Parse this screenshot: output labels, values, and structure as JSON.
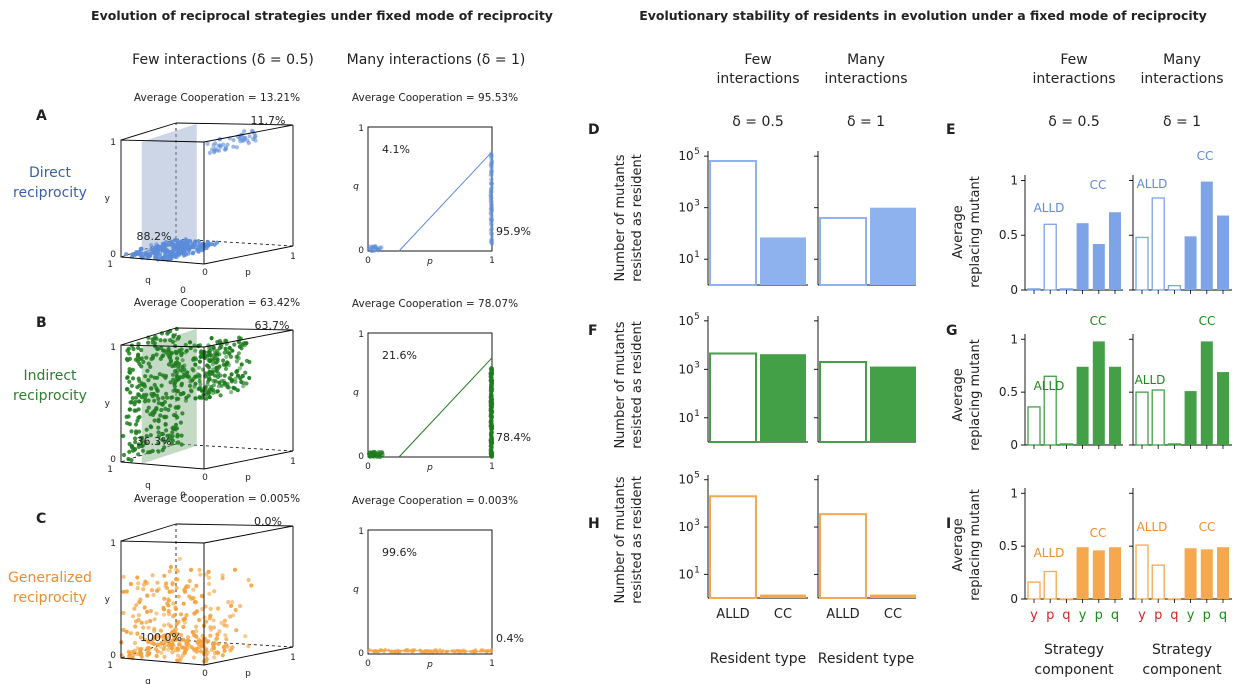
{
  "titles": {
    "left": "Evolution of reciprocal strategies under fixed mode of reciprocity",
    "right": "Evolutionary stability of residents in evolution under a fixed mode of reciprocity"
  },
  "headers": {
    "few_left": "Few interactions (δ = 0.5)",
    "many_left": "Many interactions (δ = 1)",
    "few": "Few",
    "many": "Many",
    "interactions": "interactions",
    "delta_few": "δ = 0.5",
    "delta_many": "δ = 1"
  },
  "rows": [
    {
      "letter": "A",
      "label_line1": "Direct",
      "label_line2": "reciprocity",
      "color": "#5b8bd9"
    },
    {
      "letter": "B",
      "label_line1": "Indirect",
      "label_line2": "reciprocity",
      "color": "#1e7d1e"
    },
    {
      "letter": "C",
      "label_line1": "Generalized",
      "label_line2": "reciprocity",
      "color": "#f4a340"
    }
  ],
  "axis": {
    "p": "p",
    "q": "q",
    "y": "y",
    "zero": "0",
    "one": "1"
  },
  "bar_letters": {
    "D": "D",
    "E": "E",
    "F": "F",
    "G": "G",
    "H": "H",
    "I": "I"
  },
  "ylabels": {
    "mutants_line1": "Number of mutants",
    "mutants_line2": "resisted as resident",
    "replace_line1": "Average",
    "replace_line2": "replacing mutant"
  },
  "xlabels": {
    "resident_type": "Resident type",
    "strategy": "Strategy",
    "component": "component"
  },
  "chart_data": [
    {
      "type": "scatter",
      "panel": "A-3d",
      "title": "Average Cooperation = 13.21%",
      "axes": [
        "p",
        "q",
        "y"
      ],
      "xlim": [
        0,
        1
      ],
      "ylim": [
        0,
        1
      ],
      "zlim": [
        0,
        1
      ],
      "annotations": [
        "11.7%",
        "88.2%"
      ]
    },
    {
      "type": "scatter",
      "panel": "A-2d",
      "title": "Average Cooperation = 95.53%",
      "xlabel": "p",
      "ylabel": "q",
      "xlim": [
        0,
        1
      ],
      "ylim": [
        0,
        1
      ],
      "line": {
        "x": [
          0.25,
          1
        ],
        "y": [
          0,
          0.8
        ]
      },
      "annotations": [
        "4.1%",
        "95.9%"
      ]
    },
    {
      "type": "scatter",
      "panel": "B-3d",
      "title": "Average Cooperation = 63.42%",
      "axes": [
        "p",
        "q",
        "y"
      ],
      "xlim": [
        0,
        1
      ],
      "ylim": [
        0,
        1
      ],
      "zlim": [
        0,
        1
      ],
      "annotations": [
        "63.7%",
        "36.3%"
      ]
    },
    {
      "type": "scatter",
      "panel": "B-2d",
      "title": "Average Cooperation = 78.07%",
      "xlabel": "p",
      "ylabel": "q",
      "xlim": [
        0,
        1
      ],
      "ylim": [
        0,
        1
      ],
      "line": {
        "x": [
          0.25,
          1
        ],
        "y": [
          0,
          0.8
        ]
      },
      "annotations": [
        "21.6%",
        "78.4%"
      ]
    },
    {
      "type": "scatter",
      "panel": "C-3d",
      "title": "Average Cooperation = 0.005%",
      "axes": [
        "p",
        "q",
        "y"
      ],
      "xlim": [
        0,
        1
      ],
      "ylim": [
        0,
        1
      ],
      "zlim": [
        0,
        1
      ],
      "annotations": [
        "0.0%",
        "100.0%"
      ]
    },
    {
      "type": "scatter",
      "panel": "C-2d",
      "title": "Average Cooperation = 0.003%",
      "xlabel": "p",
      "ylabel": "q",
      "xlim": [
        0,
        1
      ],
      "ylim": [
        0,
        1
      ],
      "line": {
        "x": [
          0,
          1
        ],
        "y": [
          0.03,
          0.02
        ]
      },
      "annotations": [
        "99.6%",
        "0.4%"
      ]
    },
    {
      "type": "bar",
      "panel": "D",
      "yscale": "log",
      "ylim": [
        1,
        100000
      ],
      "yticks": [
        "10",
        "10",
        "10"
      ],
      "ytick_exponents": [
        "1",
        "3",
        "5"
      ],
      "categories": [
        "ALLD",
        "CC"
      ],
      "series": [
        {
          "values": [
            65000,
            70
          ],
          "note": "few"
        },
        {
          "values": [
            400,
            1000
          ],
          "note": "many"
        }
      ]
    },
    {
      "type": "bar",
      "panel": "F",
      "yscale": "log",
      "ylim": [
        1,
        100000
      ],
      "categories": [
        "ALLD",
        "CC"
      ],
      "series": [
        {
          "values": [
            4500,
            4200
          ],
          "note": "few"
        },
        {
          "values": [
            2000,
            1300
          ],
          "note": "many"
        }
      ]
    },
    {
      "type": "bar",
      "panel": "H",
      "yscale": "log",
      "ylim": [
        1,
        100000
      ],
      "categories": [
        "ALLD",
        "CC"
      ],
      "series": [
        {
          "values": [
            20000,
            1.4
          ],
          "note": "few"
        },
        {
          "values": [
            3500,
            1.4
          ],
          "note": "many"
        }
      ]
    },
    {
      "type": "bar",
      "panel": "E",
      "ylim": [
        0,
        1
      ],
      "yticks": [
        "0",
        "0.5",
        "1"
      ],
      "categories": [
        "y",
        "p",
        "q",
        "y",
        "p",
        "q"
      ],
      "group_labels": [
        "ALLD",
        "CC"
      ],
      "series": [
        {
          "values": [
            0.01,
            0.6,
            0.01,
            0.61,
            0.42,
            0.71
          ],
          "note": "few"
        },
        {
          "values": [
            0.48,
            0.84,
            0.04,
            0.49,
            0.99,
            0.68
          ],
          "note": "many"
        }
      ]
    },
    {
      "type": "bar",
      "panel": "G",
      "ylim": [
        0,
        1
      ],
      "yticks": [
        "0",
        "0.5",
        "1"
      ],
      "categories": [
        "y",
        "p",
        "q",
        "y",
        "p",
        "q"
      ],
      "group_labels": [
        "ALLD",
        "CC"
      ],
      "series": [
        {
          "values": [
            0.36,
            0.65,
            0.01,
            0.74,
            0.98,
            0.74
          ],
          "note": "few"
        },
        {
          "values": [
            0.5,
            0.52,
            0.01,
            0.51,
            0.98,
            0.69
          ],
          "note": "many"
        }
      ]
    },
    {
      "type": "bar",
      "panel": "I",
      "ylim": [
        0,
        1
      ],
      "yticks": [
        "0",
        "0.5",
        "1"
      ],
      "categories": [
        "y",
        "p",
        "q",
        "y",
        "p",
        "q"
      ],
      "group_labels": [
        "ALLD",
        "CC"
      ],
      "series": [
        {
          "values": [
            0.16,
            0.26,
            0.0,
            0.49,
            0.46,
            0.49
          ],
          "note": "few"
        },
        {
          "values": [
            0.51,
            0.32,
            0.0,
            0.48,
            0.47,
            0.49
          ],
          "note": "many"
        }
      ]
    }
  ]
}
